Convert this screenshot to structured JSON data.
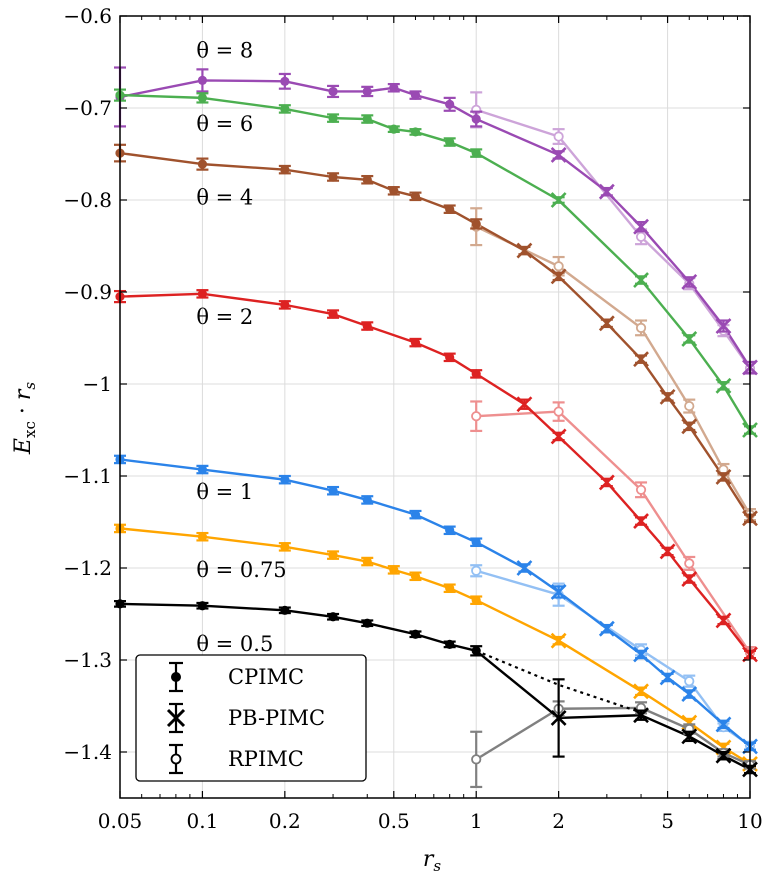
{
  "chart_data": {
    "type": "line",
    "xscale": "log",
    "xlim": [
      0.05,
      10
    ],
    "ylim": [
      -1.45,
      -0.6
    ],
    "xticks": [
      0.05,
      0.1,
      0.2,
      0.5,
      1,
      2,
      5,
      10
    ],
    "xtick_labels": [
      "0.05",
      "0.1",
      "0.2",
      "0.5",
      "1",
      "2",
      "5",
      "10"
    ],
    "yticks": [
      -0.6,
      -0.7,
      -0.8,
      -0.9,
      -1.0,
      -1.1,
      -1.2,
      -1.3,
      -1.4
    ],
    "ytick_labels": [
      "−0.6",
      "−0.7",
      "−0.8",
      "−0.9",
      "−1",
      "−1.1",
      "−1.2",
      "−1.3",
      "−1.4"
    ],
    "xlabel": "r_s",
    "ylabel": "E_xc · r_s",
    "grid": true,
    "legend_position": "bottom-left",
    "legend": [
      {
        "name": "CPIMC",
        "marker": "filled-circle"
      },
      {
        "name": "PB-PIMC",
        "marker": "cross"
      },
      {
        "name": "RPIMC",
        "marker": "open-circle"
      }
    ],
    "series": [
      {
        "theta": 8,
        "label": "θ = 8",
        "color": "#9a4ab3",
        "light_color": "#cda4d9",
        "cpimc": [
          [
            0.05,
            -0.688,
            0.032
          ],
          [
            0.1,
            -0.67,
            0.012
          ],
          [
            0.2,
            -0.671,
            0.008
          ],
          [
            0.3,
            -0.682,
            0.006
          ],
          [
            0.4,
            -0.682,
            0.005
          ],
          [
            0.5,
            -0.678,
            0.004
          ],
          [
            0.6,
            -0.686,
            0.004
          ],
          [
            0.8,
            -0.696,
            0.007
          ],
          [
            1,
            -0.712,
            0.008
          ]
        ],
        "pbpimc": [
          [
            2,
            -0.751,
            0.004
          ],
          [
            3,
            -0.791,
            0.004
          ],
          [
            4,
            -0.829,
            0.005
          ],
          [
            6,
            -0.889,
            0.005
          ],
          [
            8,
            -0.937,
            0.006
          ],
          [
            10,
            -0.982,
            0.006
          ]
        ],
        "rpimc": [
          [
            1,
            -0.702,
            0.019
          ],
          [
            2,
            -0.731,
            0.008
          ],
          [
            4,
            -0.84,
            0.008
          ],
          [
            6,
            -0.891,
            0.006
          ],
          [
            8,
            -0.942,
            0.006
          ],
          [
            10,
            -0.983,
            0.006
          ]
        ]
      },
      {
        "theta": 6,
        "label": "θ = 6",
        "color": "#4caf50",
        "light_color": "#a6d7a8",
        "cpimc": [
          [
            0.05,
            -0.686,
            0.006
          ],
          [
            0.1,
            -0.689,
            0.005
          ],
          [
            0.2,
            -0.701,
            0.004
          ],
          [
            0.3,
            -0.711,
            0.004
          ],
          [
            0.4,
            -0.712,
            0.004
          ],
          [
            0.5,
            -0.723,
            0.003
          ],
          [
            0.6,
            -0.726,
            0.003
          ],
          [
            0.8,
            -0.737,
            0.004
          ],
          [
            1,
            -0.749,
            0.004
          ]
        ],
        "pbpimc": [
          [
            2,
            -0.8,
            0.003
          ],
          [
            4,
            -0.887,
            0.004
          ],
          [
            6,
            -0.951,
            0.004
          ],
          [
            8,
            -1.002,
            0.004
          ],
          [
            10,
            -1.05,
            0.004
          ]
        ],
        "rpimc": []
      },
      {
        "theta": 4,
        "label": "θ = 4",
        "color": "#a0522d",
        "light_color": "#d2a98f",
        "cpimc": [
          [
            0.05,
            -0.749,
            0.009
          ],
          [
            0.1,
            -0.761,
            0.006
          ],
          [
            0.2,
            -0.767,
            0.004
          ],
          [
            0.3,
            -0.775,
            0.004
          ],
          [
            0.4,
            -0.778,
            0.004
          ],
          [
            0.5,
            -0.79,
            0.004
          ],
          [
            0.6,
            -0.796,
            0.004
          ],
          [
            0.8,
            -0.81,
            0.004
          ],
          [
            1,
            -0.826,
            0.005
          ]
        ],
        "pbpimc": [
          [
            1.5,
            -0.855,
            0.004
          ],
          [
            2,
            -0.883,
            0.004
          ],
          [
            3,
            -0.934,
            0.004
          ],
          [
            4,
            -0.973,
            0.004
          ],
          [
            5,
            -1.014,
            0.004
          ],
          [
            6,
            -1.046,
            0.004
          ],
          [
            8,
            -1.101,
            0.004
          ],
          [
            10,
            -1.146,
            0.004
          ]
        ],
        "rpimc": [
          [
            1,
            -0.829,
            0.02
          ],
          [
            2,
            -0.872,
            0.01
          ],
          [
            4,
            -0.939,
            0.008
          ],
          [
            6,
            -1.024,
            0.007
          ],
          [
            8,
            -1.093,
            0.006
          ],
          [
            10,
            -1.142,
            0.006
          ]
        ]
      },
      {
        "theta": 2,
        "label": "θ = 2",
        "color": "#dd2222",
        "light_color": "#ee8f8f",
        "cpimc": [
          [
            0.05,
            -0.905,
            0.006
          ],
          [
            0.1,
            -0.902,
            0.004
          ],
          [
            0.2,
            -0.914,
            0.004
          ],
          [
            0.3,
            -0.924,
            0.004
          ],
          [
            0.4,
            -0.937,
            0.004
          ],
          [
            0.6,
            -0.955,
            0.004
          ],
          [
            0.8,
            -0.971,
            0.004
          ],
          [
            1,
            -0.989,
            0.004
          ]
        ],
        "pbpimc": [
          [
            1.5,
            -1.022,
            0.005
          ],
          [
            2,
            -1.057,
            0.004
          ],
          [
            3,
            -1.107,
            0.004
          ],
          [
            4,
            -1.149,
            0.004
          ],
          [
            5,
            -1.182,
            0.004
          ],
          [
            6,
            -1.212,
            0.004
          ],
          [
            8,
            -1.257,
            0.004
          ],
          [
            10,
            -1.294,
            0.004
          ]
        ],
        "rpimc": [
          [
            1,
            -1.035,
            0.016
          ],
          [
            2,
            -1.03,
            0.01
          ],
          [
            4,
            -1.115,
            0.008
          ],
          [
            6,
            -1.195,
            0.007
          ],
          [
            10,
            -1.292,
            0.006
          ]
        ]
      },
      {
        "theta": 1,
        "label": "θ = 1",
        "color": "#2b83e9",
        "light_color": "#93c0f4",
        "cpimc": [
          [
            0.05,
            -1.082,
            0.004
          ],
          [
            0.1,
            -1.093,
            0.004
          ],
          [
            0.2,
            -1.104,
            0.004
          ],
          [
            0.3,
            -1.116,
            0.004
          ],
          [
            0.4,
            -1.126,
            0.004
          ],
          [
            0.6,
            -1.142,
            0.004
          ],
          [
            0.8,
            -1.159,
            0.004
          ],
          [
            1,
            -1.172,
            0.004
          ]
        ],
        "pbpimc": [
          [
            1.5,
            -1.2,
            0.004
          ],
          [
            2,
            -1.226,
            0.006
          ],
          [
            3,
            -1.266,
            0.004
          ],
          [
            4,
            -1.294,
            0.004
          ],
          [
            5,
            -1.319,
            0.004
          ],
          [
            6,
            -1.337,
            0.004
          ],
          [
            8,
            -1.37,
            0.004
          ],
          [
            10,
            -1.394,
            0.004
          ]
        ],
        "rpimc": [
          [
            1,
            -1.203,
            0.006
          ],
          [
            2,
            -1.229,
            0.012
          ],
          [
            4,
            -1.289,
            0.006
          ],
          [
            6,
            -1.323,
            0.006
          ],
          [
            8,
            -1.373,
            0.004
          ],
          [
            10,
            -1.393,
            0.004
          ]
        ]
      },
      {
        "theta": 0.75,
        "label": "θ = 0.75",
        "color": "#ffa500",
        "light_color": "#ffd27f",
        "cpimc": [
          [
            0.05,
            -1.157,
            0.004
          ],
          [
            0.1,
            -1.166,
            0.004
          ],
          [
            0.2,
            -1.177,
            0.004
          ],
          [
            0.3,
            -1.186,
            0.004
          ],
          [
            0.4,
            -1.193,
            0.004
          ],
          [
            0.5,
            -1.202,
            0.004
          ],
          [
            0.6,
            -1.209,
            0.004
          ],
          [
            0.8,
            -1.222,
            0.004
          ],
          [
            1,
            -1.235,
            0.004
          ]
        ],
        "pbpimc": [
          [
            2,
            -1.279,
            0.004
          ],
          [
            4,
            -1.334,
            0.004
          ],
          [
            6,
            -1.368,
            0.004
          ],
          [
            8,
            -1.395,
            0.004
          ],
          [
            10,
            -1.413,
            0.004
          ]
        ],
        "rpimc": []
      },
      {
        "theta": 0.5,
        "label": "θ = 0.5",
        "color": "#000000",
        "light_color": "#808080",
        "cpimc": [
          [
            0.05,
            -1.239,
            0.003
          ],
          [
            0.1,
            -1.241,
            0.003
          ],
          [
            0.2,
            -1.246,
            0.003
          ],
          [
            0.3,
            -1.253,
            0.003
          ],
          [
            0.4,
            -1.26,
            0.003
          ],
          [
            0.6,
            -1.272,
            0.003
          ],
          [
            0.8,
            -1.283,
            0.003
          ],
          [
            1,
            -1.29,
            0.005
          ]
        ],
        "pbpimc": [
          [
            2,
            -1.363,
            0.042
          ],
          [
            4,
            -1.36,
            0.005
          ],
          [
            6,
            -1.383,
            0.005
          ],
          [
            8,
            -1.404,
            0.004
          ],
          [
            10,
            -1.419,
            0.004
          ]
        ],
        "rpimc": [
          [
            1,
            -1.408,
            0.03
          ],
          [
            2,
            -1.353,
            0.008
          ],
          [
            4,
            -1.352,
            0.006
          ],
          [
            6,
            -1.375,
            0.005
          ],
          [
            8,
            -1.401,
            0.004
          ],
          [
            10,
            -1.414,
            0.004
          ]
        ],
        "dotted": [
          [
            1,
            -1.29
          ],
          [
            2,
            -1.327
          ],
          [
            4,
            -1.357
          ]
        ]
      }
    ]
  }
}
